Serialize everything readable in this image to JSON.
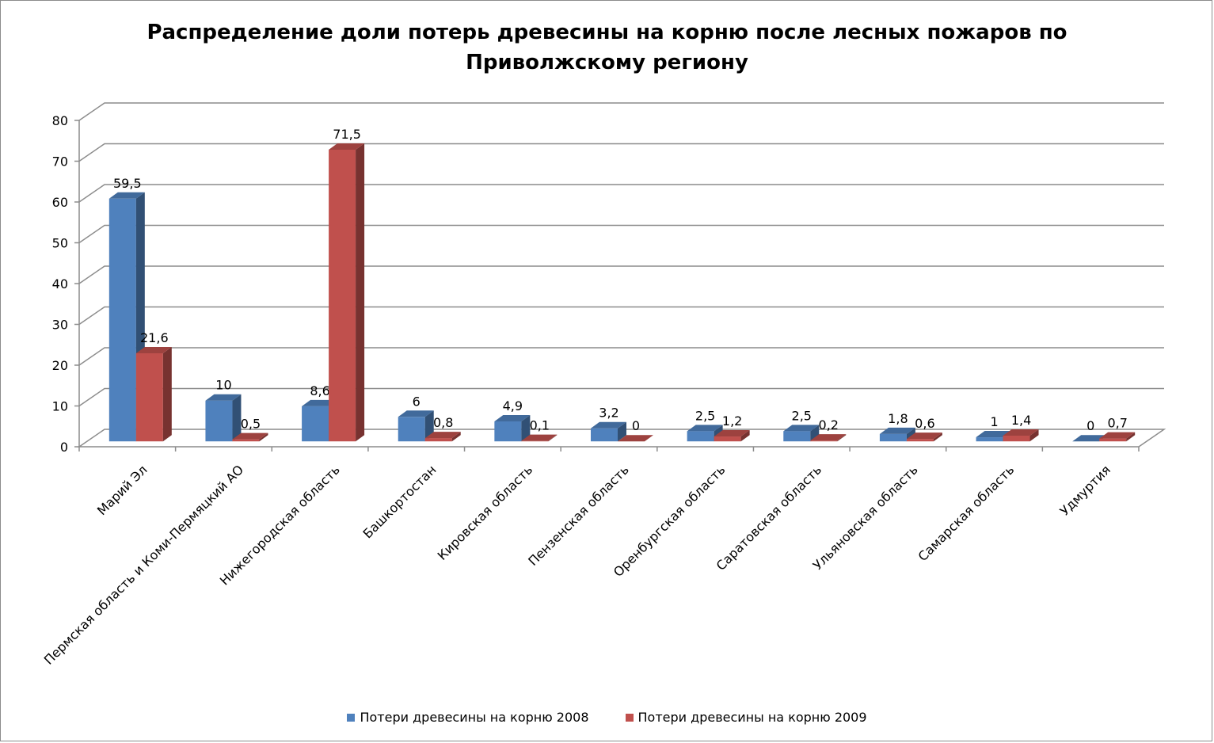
{
  "chart_data": {
    "type": "bar",
    "title_lines": [
      "Распределение доли потерь древесины на корню после лесных пожаров по",
      "Приволжскому региону"
    ],
    "xlabel": "",
    "ylabel": "",
    "ylim": [
      0,
      80
    ],
    "yticks": [
      0,
      10,
      20,
      30,
      40,
      50,
      60,
      70,
      80
    ],
    "grid": true,
    "legend": "bottom",
    "categories": [
      "Марий Эл",
      "Пермская область и Коми-Пермяцкий АО",
      "Нижегородская область",
      "Башкортостан",
      "Кировская область",
      "Пензенская область",
      "Оренбургская область",
      "Саратовская область",
      "Ульяновская область",
      "Самарская область",
      "Удмуртия"
    ],
    "series": [
      {
        "name": "Потери древесины на корню 2008",
        "color": "#4f81bd",
        "values": [
          59.5,
          10,
          8.6,
          6,
          4.9,
          3.2,
          2.5,
          2.5,
          1.8,
          1,
          0
        ],
        "labels": [
          "59,5",
          "10",
          "8,6",
          "6",
          "4,9",
          "3,2",
          "2,5",
          "2,5",
          "1,8",
          "1",
          "0"
        ]
      },
      {
        "name": "Потери древесины на корню 2009",
        "color": "#c0504d",
        "values": [
          21.6,
          0.5,
          71.5,
          0.8,
          0.1,
          0,
          1.2,
          0.2,
          0.6,
          1.4,
          0.7
        ],
        "labels": [
          "21,6",
          "0,5",
          "71,5",
          "0,8",
          "0,1",
          "0",
          "1,2",
          "0,2",
          "0,6",
          "1,4",
          "0,7"
        ]
      }
    ]
  }
}
